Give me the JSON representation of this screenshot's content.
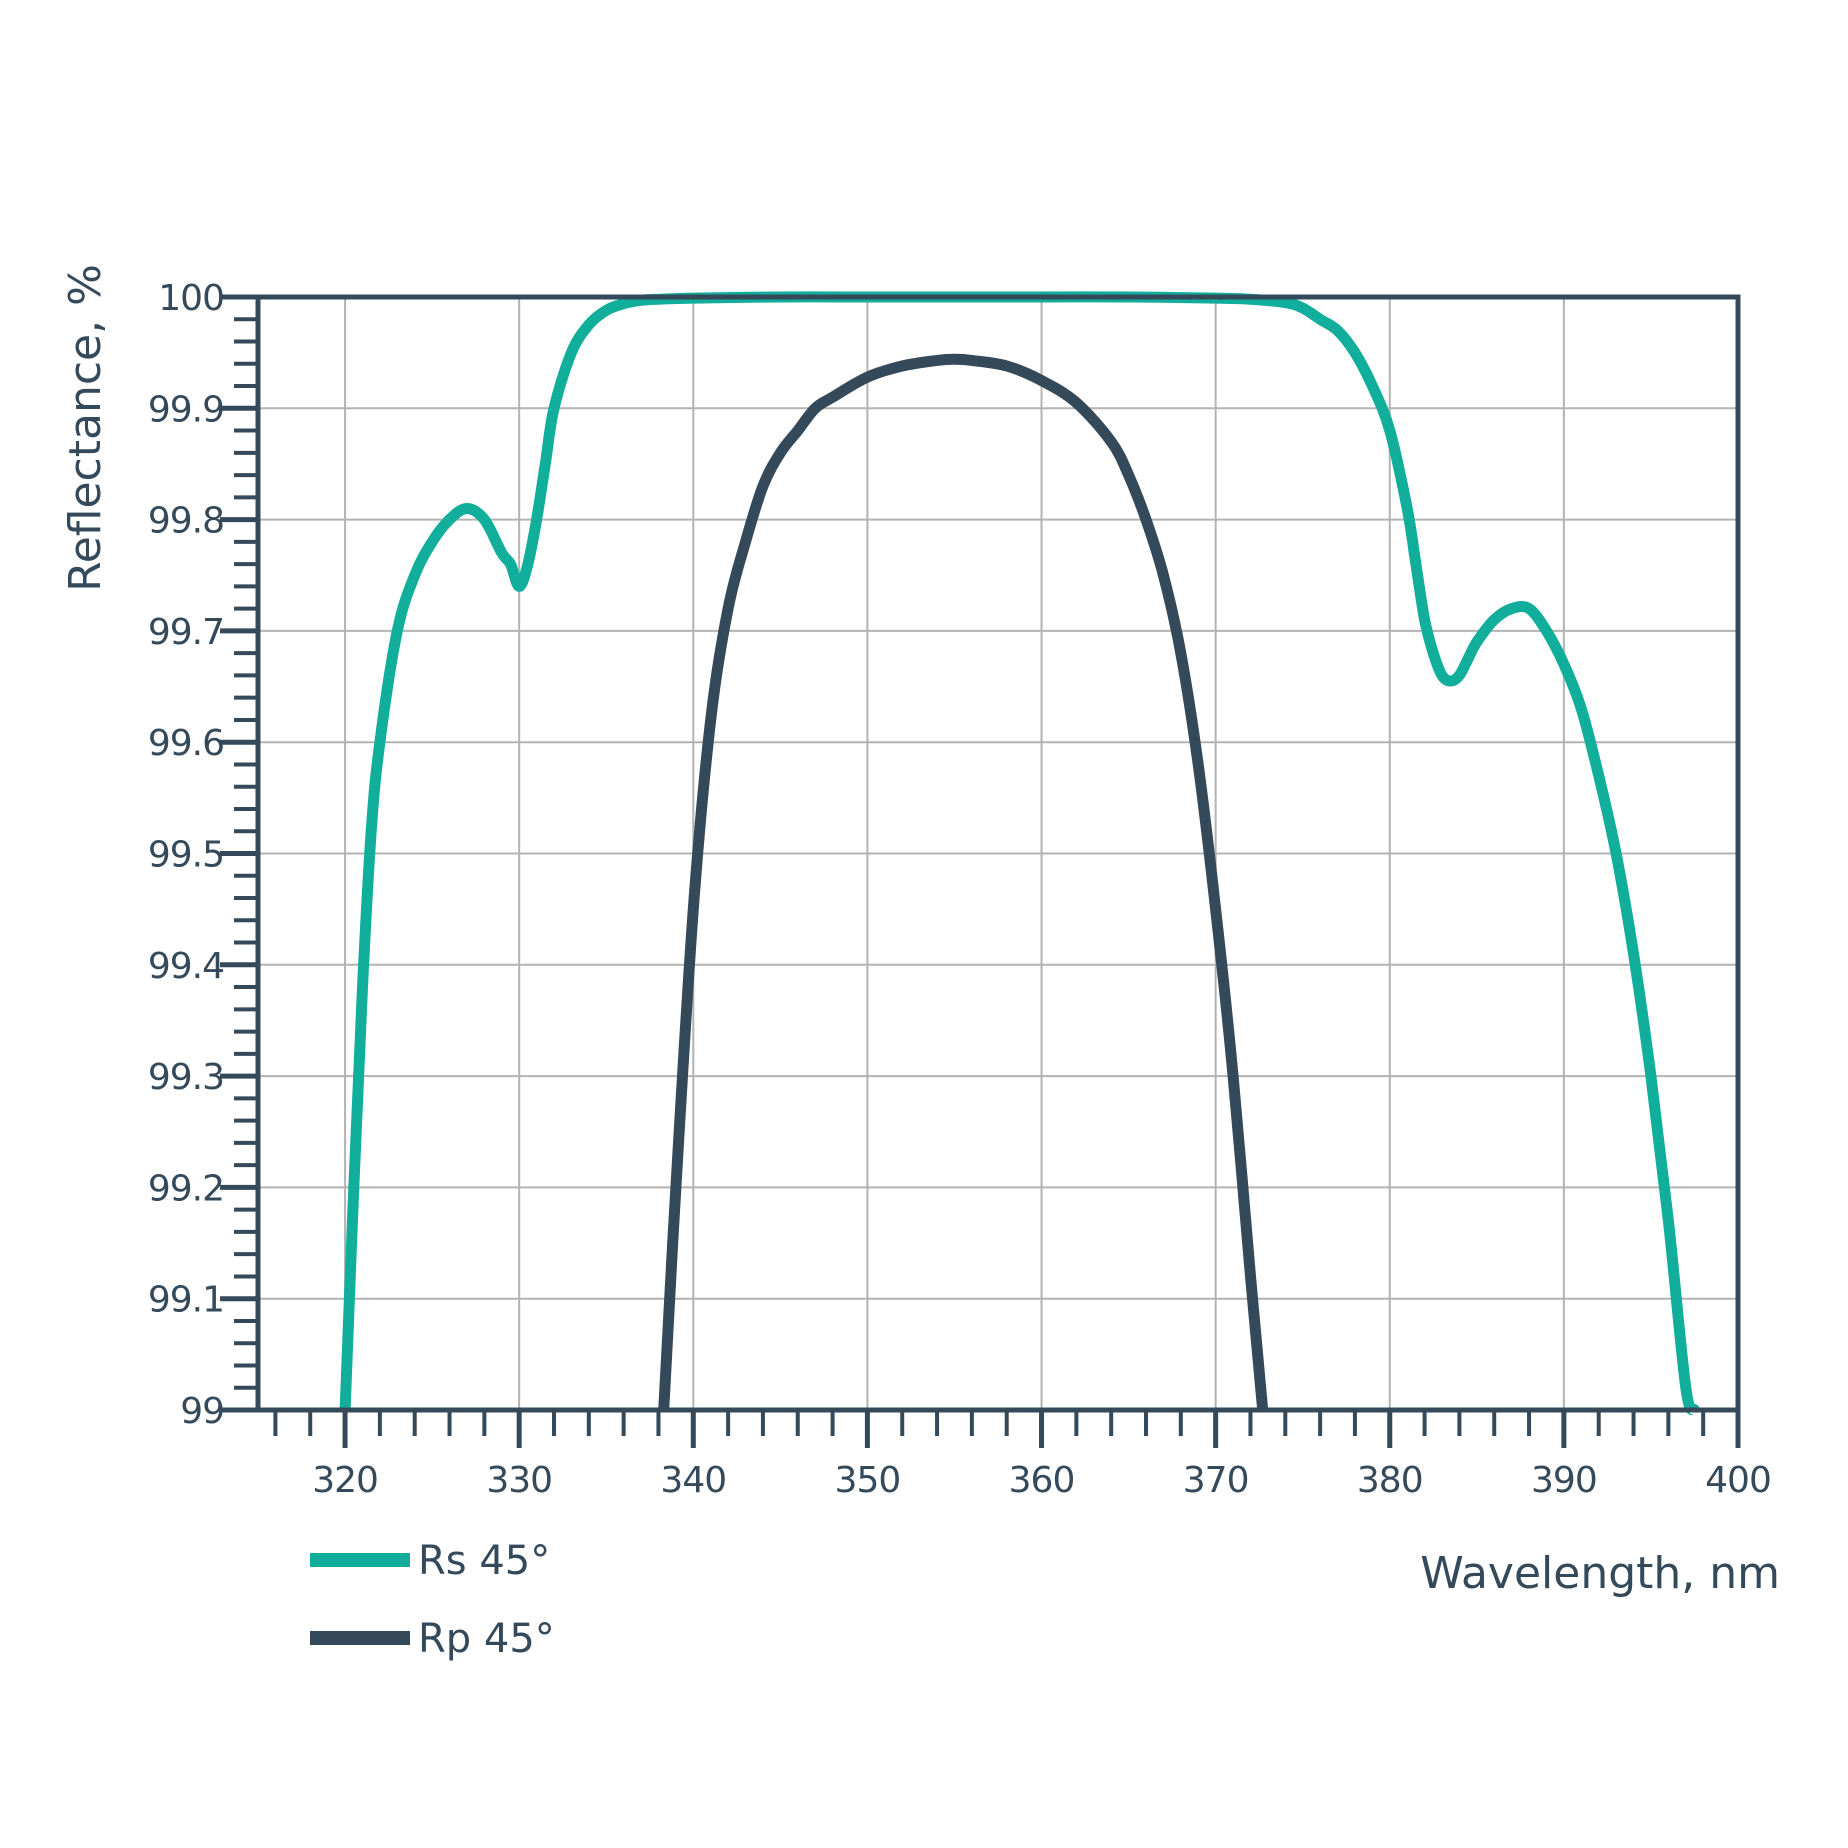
{
  "chart_data": {
    "type": "line",
    "xlabel": "Wavelength, nm",
    "ylabel": "Reflectance, %",
    "xlim": [
      315,
      400
    ],
    "ylim": [
      99,
      100
    ],
    "x_ticks": [
      "320",
      "330",
      "340",
      "350",
      "360",
      "370",
      "380",
      "390",
      "400"
    ],
    "y_ticks": [
      "99",
      "99.1",
      "99.2",
      "99.3",
      "99.4",
      "99.5",
      "99.6",
      "99.7",
      "99.8",
      "99.9",
      "100"
    ],
    "grid": true,
    "legend_position": "bottom-left",
    "series": [
      {
        "name": "Rs 45°",
        "color": "#12ae9c",
        "x": [
          320,
          320.5,
          321,
          321.5,
          322,
          323,
          324,
          325,
          326,
          327,
          328,
          329,
          329.5,
          330,
          330.5,
          331,
          331.5,
          332,
          333,
          334,
          335,
          336,
          337,
          338,
          340,
          345,
          350,
          355,
          360,
          365,
          370,
          372,
          374,
          375,
          376,
          377,
          378,
          379,
          380,
          381,
          381.5,
          382,
          382.5,
          383,
          383.5,
          384,
          384.5,
          385,
          386,
          387,
          388,
          389,
          390,
          391,
          392,
          393,
          394,
          395,
          396,
          397,
          397.5
        ],
        "y": [
          99.0,
          99.2,
          99.38,
          99.52,
          99.6,
          99.7,
          99.75,
          99.78,
          99.8,
          99.81,
          99.8,
          99.77,
          99.76,
          99.74,
          99.76,
          99.8,
          99.85,
          99.9,
          99.95,
          99.975,
          99.988,
          99.994,
          99.997,
          99.998,
          99.999,
          100.0,
          100.0,
          100.0,
          100.0,
          100.0,
          99.999,
          99.998,
          99.995,
          99.99,
          99.98,
          99.97,
          99.95,
          99.92,
          99.88,
          99.81,
          99.76,
          99.71,
          99.68,
          99.66,
          99.655,
          99.66,
          99.675,
          99.69,
          99.71,
          99.72,
          99.72,
          99.7,
          99.67,
          99.63,
          99.57,
          99.5,
          99.41,
          99.3,
          99.17,
          99.02,
          99.0
        ]
      },
      {
        "name": "Rp 45°",
        "color": "#34495a",
        "x": [
          338.3,
          339,
          340,
          341,
          342,
          343,
          344,
          345,
          346,
          347,
          348,
          350,
          352,
          354,
          355,
          356,
          358,
          360,
          362,
          364,
          365,
          366,
          367,
          368,
          369,
          370,
          371,
          372,
          372.7
        ],
        "y": [
          99.0,
          99.2,
          99.45,
          99.62,
          99.72,
          99.78,
          99.83,
          99.86,
          99.88,
          99.9,
          99.91,
          99.928,
          99.938,
          99.943,
          99.944,
          99.943,
          99.938,
          99.925,
          99.905,
          99.87,
          99.84,
          99.8,
          99.75,
          99.68,
          99.58,
          99.45,
          99.3,
          99.12,
          99.0
        ]
      }
    ]
  }
}
